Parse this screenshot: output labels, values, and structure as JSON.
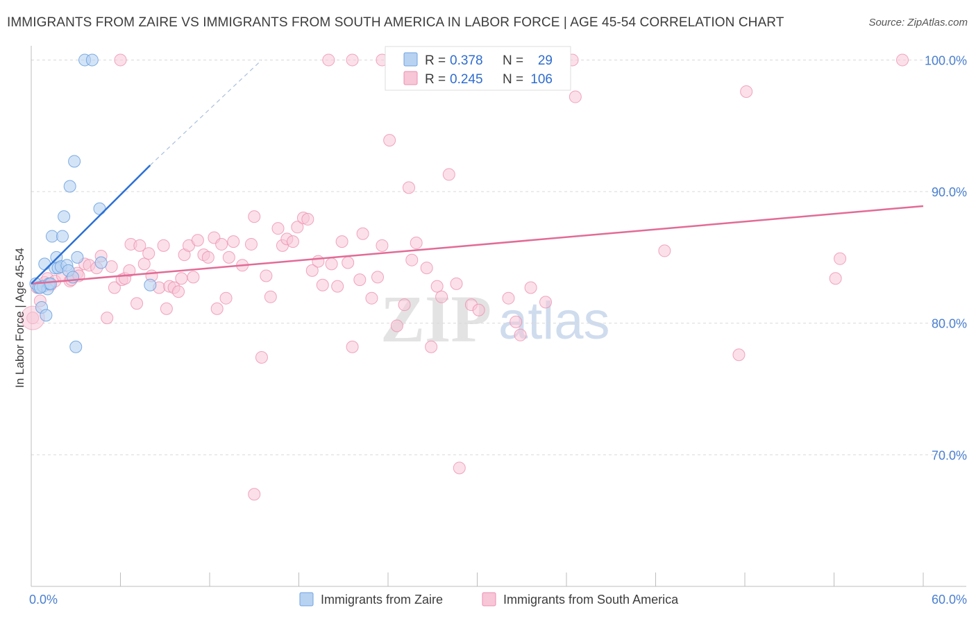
{
  "title": "IMMIGRANTS FROM ZAIRE VS IMMIGRANTS FROM SOUTH AMERICA IN LABOR FORCE | AGE 45-54 CORRELATION CHART",
  "source": "Source: ZipAtlas.com",
  "watermark": {
    "zip": "ZIP",
    "atlas": "atlas"
  },
  "colors": {
    "blue": "#6fa3e0",
    "blue_fill": "#b8d2f2",
    "blue_line": "#2a6fd6",
    "pink": "#ee8fb0",
    "pink_fill": "#f7c6d7",
    "pink_line": "#e26b96",
    "tick_text": "#4a7fcf",
    "grid": "#d9d9d9"
  },
  "legend": {
    "r_label": "R =",
    "n_label": "N =",
    "series": [
      {
        "r": "0.378",
        "n": "29"
      },
      {
        "r": "0.245",
        "n": "106"
      }
    ]
  },
  "bottom_legend": [
    "Immigrants from Zaire",
    "Immigrants from South America"
  ],
  "chart_data": {
    "type": "scatter",
    "title": "IMMIGRANTS FROM ZAIRE VS IMMIGRANTS FROM SOUTH AMERICA IN LABOR FORCE | AGE 45-54 CORRELATION CHART",
    "xlabel": "",
    "ylabel": "In Labor Force | Age 45-54",
    "xlim": [
      0,
      60
    ],
    "ylim": [
      60,
      101.5
    ],
    "x_tick_labels": [
      {
        "value": 0,
        "label": "0.0%"
      },
      {
        "value": 60,
        "label": "60.0%"
      }
    ],
    "x_minor_ticks": [
      6,
      12,
      18,
      24,
      30,
      36,
      42,
      48,
      54
    ],
    "y_ticks": [
      {
        "value": 70,
        "label": "70.0%"
      },
      {
        "value": 80,
        "label": "80.0%"
      },
      {
        "value": 90,
        "label": "90.0%"
      },
      {
        "value": 100,
        "label": "100.0%"
      }
    ],
    "grid": true,
    "series": [
      {
        "name": "Immigrants from Zaire",
        "r": 0.378,
        "n": 29,
        "trend": {
          "x0": 0,
          "y0": 83.0,
          "x1": 8,
          "y1": 92.0,
          "dash_x1": 15.5,
          "dash_y1": 100.0
        },
        "points": [
          [
            0.3,
            83.0
          ],
          [
            0.5,
            82.7
          ],
          [
            0.7,
            81.2
          ],
          [
            0.8,
            82.8
          ],
          [
            0.9,
            84.5
          ],
          [
            1.0,
            80.6
          ],
          [
            1.1,
            82.6
          ],
          [
            1.2,
            83.0
          ],
          [
            1.4,
            86.6
          ],
          [
            1.6,
            84.2
          ],
          [
            1.7,
            85.0
          ],
          [
            1.8,
            84.2
          ],
          [
            2.0,
            84.3
          ],
          [
            2.1,
            86.6
          ],
          [
            2.2,
            88.1
          ],
          [
            2.4,
            84.4
          ],
          [
            2.5,
            84.0
          ],
          [
            2.6,
            90.4
          ],
          [
            2.8,
            83.5
          ],
          [
            2.9,
            92.3
          ],
          [
            3.1,
            85.0
          ],
          [
            3.0,
            78.2
          ],
          [
            3.6,
            100.0
          ],
          [
            4.1,
            100.0
          ],
          [
            4.6,
            88.7
          ],
          [
            4.7,
            84.6
          ],
          [
            8.0,
            82.9
          ],
          [
            0.6,
            82.7
          ],
          [
            1.3,
            83.0
          ]
        ]
      },
      {
        "name": "Immigrants from South America",
        "r": 0.245,
        "n": 106,
        "trend": {
          "x0": 0,
          "y0": 83.0,
          "x1": 60,
          "y1": 88.9
        },
        "points": [
          [
            0.1,
            80.4
          ],
          [
            0.4,
            82.7
          ],
          [
            0.6,
            81.7
          ],
          [
            0.9,
            83.1
          ],
          [
            1.1,
            83.4
          ],
          [
            1.3,
            82.9
          ],
          [
            1.6,
            83.2
          ],
          [
            2.1,
            83.6
          ],
          [
            2.6,
            83.2
          ],
          [
            2.7,
            83.3
          ],
          [
            3.1,
            83.8
          ],
          [
            3.2,
            83.6
          ],
          [
            3.6,
            84.5
          ],
          [
            3.9,
            84.4
          ],
          [
            4.4,
            84.2
          ],
          [
            4.7,
            85.1
          ],
          [
            5.1,
            80.4
          ],
          [
            5.4,
            84.3
          ],
          [
            5.6,
            82.7
          ],
          [
            6.1,
            83.3
          ],
          [
            6.3,
            83.4
          ],
          [
            6.6,
            84.0
          ],
          [
            6.7,
            86.0
          ],
          [
            7.1,
            81.5
          ],
          [
            7.3,
            85.9
          ],
          [
            7.6,
            84.5
          ],
          [
            7.9,
            85.3
          ],
          [
            8.1,
            83.6
          ],
          [
            8.6,
            82.7
          ],
          [
            8.9,
            85.9
          ],
          [
            9.1,
            81.1
          ],
          [
            9.3,
            82.8
          ],
          [
            9.6,
            82.7
          ],
          [
            9.9,
            82.4
          ],
          [
            10.1,
            83.4
          ],
          [
            10.3,
            85.2
          ],
          [
            10.6,
            85.9
          ],
          [
            10.9,
            83.5
          ],
          [
            11.2,
            86.3
          ],
          [
            11.6,
            85.2
          ],
          [
            11.9,
            85.0
          ],
          [
            12.3,
            86.5
          ],
          [
            12.5,
            81.1
          ],
          [
            12.8,
            86.0
          ],
          [
            13.1,
            81.9
          ],
          [
            13.3,
            85.0
          ],
          [
            13.6,
            86.2
          ],
          [
            14.2,
            84.4
          ],
          [
            14.8,
            86.0
          ],
          [
            15.0,
            88.1
          ],
          [
            15.5,
            77.4
          ],
          [
            15.8,
            83.6
          ],
          [
            16.1,
            82.0
          ],
          [
            16.6,
            87.2
          ],
          [
            16.9,
            85.9
          ],
          [
            17.2,
            86.4
          ],
          [
            17.6,
            86.2
          ],
          [
            17.9,
            87.3
          ],
          [
            18.3,
            88.0
          ],
          [
            18.6,
            87.9
          ],
          [
            18.9,
            84.0
          ],
          [
            19.3,
            84.7
          ],
          [
            19.6,
            82.9
          ],
          [
            20.2,
            84.5
          ],
          [
            20.6,
            82.8
          ],
          [
            20.9,
            86.2
          ],
          [
            21.3,
            84.6
          ],
          [
            21.6,
            78.2
          ],
          [
            22.1,
            83.3
          ],
          [
            22.3,
            86.8
          ],
          [
            22.9,
            81.9
          ],
          [
            23.3,
            83.5
          ],
          [
            23.6,
            85.9
          ],
          [
            24.1,
            93.9
          ],
          [
            24.6,
            79.8
          ],
          [
            25.1,
            81.4
          ],
          [
            25.4,
            90.3
          ],
          [
            25.6,
            84.8
          ],
          [
            25.9,
            86.1
          ],
          [
            26.6,
            84.2
          ],
          [
            26.9,
            78.2
          ],
          [
            27.3,
            82.8
          ],
          [
            27.6,
            82.0
          ],
          [
            28.1,
            91.3
          ],
          [
            28.6,
            83.0
          ],
          [
            29.6,
            81.4
          ],
          [
            30.1,
            81.0
          ],
          [
            32.1,
            81.9
          ],
          [
            32.6,
            80.1
          ],
          [
            32.9,
            79.1
          ],
          [
            33.6,
            82.7
          ],
          [
            34.6,
            81.6
          ],
          [
            36.6,
            97.2
          ],
          [
            42.6,
            85.5
          ],
          [
            47.6,
            77.6
          ],
          [
            48.1,
            97.6
          ],
          [
            54.1,
            83.4
          ],
          [
            54.4,
            84.9
          ],
          [
            23.6,
            100.0
          ],
          [
            21.6,
            100.0
          ],
          [
            15.0,
            67.0
          ],
          [
            28.8,
            69.0
          ],
          [
            36.4,
            100.0
          ],
          [
            58.6,
            100.0
          ],
          [
            20.0,
            100.0
          ],
          [
            6.0,
            100.0
          ]
        ]
      }
    ]
  }
}
